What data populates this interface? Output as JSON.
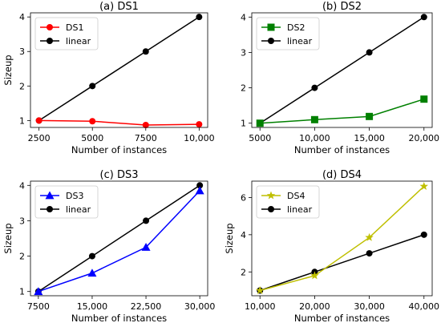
{
  "colors": {
    "ds1": "#ff0000",
    "ds2": "#008000",
    "ds3": "#0000ff",
    "ds4": "#bfbf00",
    "linear": "#000000"
  },
  "chart_data": [
    {
      "type": "line",
      "title": "(a) DS1",
      "xlabel": "Number of instances",
      "ylabel": "Sizeup",
      "x": [
        2500,
        5000,
        7500,
        10000
      ],
      "xticks": [
        2500,
        5000,
        7500,
        10000
      ],
      "xtick_labels": [
        "2500",
        "5000",
        "7500",
        "10,000"
      ],
      "yticks": [
        1,
        2,
        3,
        4
      ],
      "ytick_labels": [
        "1",
        "2",
        "3",
        "4"
      ],
      "xlim": [
        2100,
        10400
      ],
      "ylim": [
        0.8,
        4.12
      ],
      "legend_position": "top-left",
      "series": [
        {
          "name": "DS1",
          "values": [
            1.0,
            0.98,
            0.87,
            0.89
          ],
          "color": "#ff0000",
          "marker": "circle"
        },
        {
          "name": "linear",
          "values": [
            1,
            2,
            3,
            4
          ],
          "color": "#000000",
          "marker": "circle"
        }
      ]
    },
    {
      "type": "line",
      "title": "(b) DS2",
      "xlabel": "Number of instances",
      "ylabel": "",
      "x": [
        5000,
        10000,
        15000,
        20000
      ],
      "xticks": [
        5000,
        10000,
        15000,
        20000
      ],
      "xtick_labels": [
        "5000",
        "10,000",
        "15,000",
        "20,000"
      ],
      "yticks": [
        1,
        2,
        3,
        4
      ],
      "ytick_labels": [
        "1",
        "2",
        "3",
        "4"
      ],
      "xlim": [
        4250,
        20750
      ],
      "ylim": [
        0.88,
        4.12
      ],
      "legend_position": "top-left",
      "series": [
        {
          "name": "DS2",
          "values": [
            1.0,
            1.1,
            1.19,
            1.68
          ],
          "color": "#008000",
          "marker": "square"
        },
        {
          "name": "linear",
          "values": [
            1,
            2,
            3,
            4
          ],
          "color": "#000000",
          "marker": "circle"
        }
      ]
    },
    {
      "type": "line",
      "title": "(c) DS3",
      "xlabel": "Number of instances",
      "ylabel": "Sizeup",
      "x": [
        7500,
        15000,
        22500,
        30000
      ],
      "xticks": [
        7500,
        15000,
        22500,
        30000
      ],
      "xtick_labels": [
        "7500",
        "15,000",
        "22,500",
        "30,000"
      ],
      "yticks": [
        1,
        2,
        3,
        4
      ],
      "ytick_labels": [
        "1",
        "2",
        "3",
        "4"
      ],
      "xlim": [
        6400,
        31100
      ],
      "ylim": [
        0.88,
        4.12
      ],
      "legend_position": "top-left",
      "series": [
        {
          "name": "DS3",
          "values": [
            1.0,
            1.52,
            2.25,
            3.85
          ],
          "color": "#0000ff",
          "marker": "triangle"
        },
        {
          "name": "linear",
          "values": [
            1,
            2,
            3,
            4
          ],
          "color": "#000000",
          "marker": "circle"
        }
      ]
    },
    {
      "type": "line",
      "title": "(d) DS4",
      "xlabel": "Number of instances",
      "ylabel": "Sizeup",
      "x": [
        10000,
        20000,
        30000,
        40000
      ],
      "xticks": [
        10000,
        20000,
        30000,
        40000
      ],
      "xtick_labels": [
        "10,000",
        "20,000",
        "30,000",
        "40,000"
      ],
      "yticks": [
        2,
        4,
        6
      ],
      "ytick_labels": [
        "2",
        "4",
        "6"
      ],
      "xlim": [
        8500,
        41500
      ],
      "ylim": [
        0.72,
        6.88
      ],
      "legend_position": "top-left",
      "series": [
        {
          "name": "DS4",
          "values": [
            1.0,
            1.8,
            3.85,
            6.6
          ],
          "color": "#bfbf00",
          "marker": "star"
        },
        {
          "name": "linear",
          "values": [
            1,
            2,
            3,
            4
          ],
          "color": "#000000",
          "marker": "circle"
        }
      ]
    }
  ]
}
